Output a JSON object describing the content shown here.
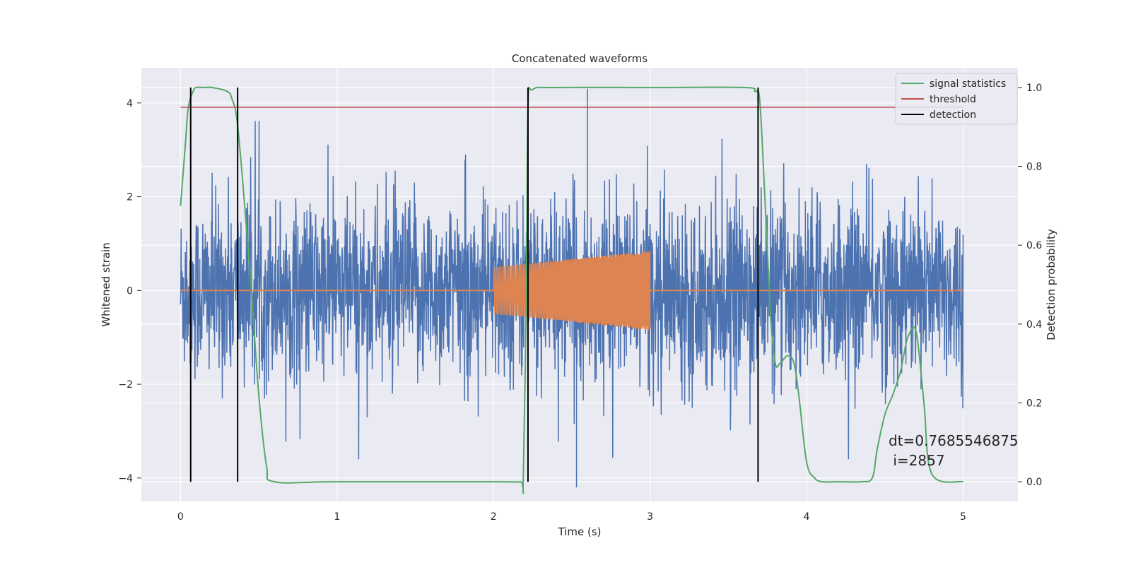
{
  "chart_data": {
    "type": "line",
    "title": "Concatenated waveforms",
    "xlabel": "Time (s)",
    "ylabel": "Whitened strain",
    "y2label": "Detection probability",
    "xlim": [
      -0.25,
      5.35
    ],
    "ylim": [
      -4.5,
      4.75
    ],
    "y2lim": [
      -0.05,
      1.05
    ],
    "x_ticks": [
      "0",
      "1",
      "2",
      "3",
      "4",
      "5"
    ],
    "y_ticks": [
      "4",
      "2",
      "0",
      "−2",
      "−4"
    ],
    "y2_ticks": [
      "1.0",
      "0.8",
      "0.6",
      "0.4",
      "0.2",
      "0.0"
    ],
    "grid": true,
    "legend_position": "top-right",
    "legend": [
      "signal statistics",
      "threshold",
      "detection"
    ],
    "annotation": "dt=0.7685546875\n i=2857",
    "colors": {
      "noise": "#4c72b0",
      "injection": "#dd8452",
      "signal_statistics": "#55a868",
      "threshold": "#c44e52",
      "detection": "#000000",
      "background": "#eaeaf2",
      "grid": "#ffffff"
    },
    "series": [
      {
        "name": "",
        "axis": "left",
        "description_shape": "noise",
        "x_range": [
          0,
          5
        ],
        "envelope": [
          -4.2,
          4.3
        ],
        "spikes": [
          {
            "x": 2.6,
            "y": 4.3
          },
          {
            "x": 2.53,
            "y": -4.2
          }
        ]
      },
      {
        "name": "",
        "axis": "left",
        "shape": "chirp",
        "x": [
          2.0,
          3.0
        ],
        "amplitude_start": 0.5,
        "amplitude_end": 0.85,
        "flat_value": 0,
        "flat_x_range": [
          0,
          5
        ]
      },
      {
        "name": "signal statistics",
        "axis": "right",
        "x": [
          0,
          0.03,
          0.05,
          0.08,
          0.1,
          0.15,
          0.2,
          0.3,
          0.33,
          0.36,
          0.4,
          0.45,
          0.5,
          0.55,
          0.6,
          1.0,
          2.0,
          2.17,
          2.19,
          2.21,
          2.22,
          2.25,
          2.4,
          3.0,
          3.6,
          3.67,
          3.7,
          3.73,
          3.77,
          3.8,
          3.83,
          3.88,
          3.92,
          3.95,
          4.0,
          4.05,
          4.1,
          4.2,
          4.35,
          4.42,
          4.45,
          4.5,
          4.55,
          4.6,
          4.62,
          4.65,
          4.7,
          4.75,
          4.8,
          5.0
        ],
        "y": [
          0.7,
          0.85,
          0.95,
          0.99,
          1.0,
          1.0,
          1.0,
          0.99,
          0.97,
          0.92,
          0.75,
          0.5,
          0.22,
          0.04,
          0.0,
          0.0,
          0.0,
          0.0,
          0.01,
          0.5,
          0.95,
          0.995,
          1.0,
          1.0,
          1.0,
          0.99,
          0.97,
          0.75,
          0.42,
          0.3,
          0.3,
          0.32,
          0.3,
          0.22,
          0.05,
          0.01,
          0.0,
          0.0,
          0.0,
          0.01,
          0.08,
          0.17,
          0.22,
          0.28,
          0.32,
          0.37,
          0.38,
          0.2,
          0.02,
          0.0
        ]
      },
      {
        "name": "threshold",
        "axis": "right",
        "x": [
          0,
          5
        ],
        "y": [
          0.95,
          0.95
        ]
      },
      {
        "name": "detection",
        "axis": "right",
        "type": "vlines",
        "x": [
          0.065,
          0.365,
          2.22,
          3.69
        ],
        "ymin": 0.0,
        "ymax": 1.0
      }
    ]
  }
}
